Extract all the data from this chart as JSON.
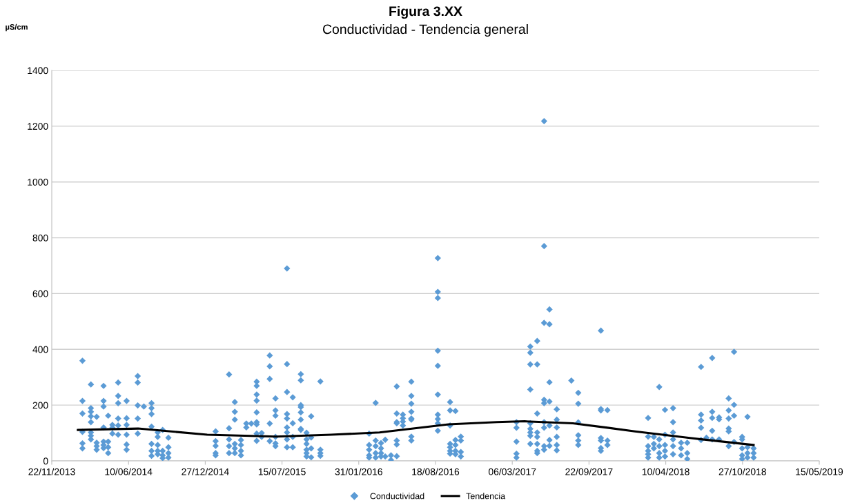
{
  "chart_data": {
    "type": "scatter",
    "title": "Figura 3.XX",
    "subtitle": "Conductividad - Tendencia general",
    "ylabel": "µS/cm",
    "xlim": [
      "2013-11-22",
      "2019-05-15"
    ],
    "xticks": [
      {
        "value": "2013-11-22",
        "label": "22/11/2013"
      },
      {
        "value": "2014-06-10",
        "label": "10/06/2014"
      },
      {
        "value": "2014-12-27",
        "label": "27/12/2014"
      },
      {
        "value": "2015-07-15",
        "label": "15/07/2015"
      },
      {
        "value": "2016-01-31",
        "label": "31/01/2016"
      },
      {
        "value": "2016-08-18",
        "label": "18/08/2016"
      },
      {
        "value": "2017-03-06",
        "label": "06/03/2017"
      },
      {
        "value": "2017-09-22",
        "label": "22/09/2017"
      },
      {
        "value": "2018-04-10",
        "label": "10/04/2018"
      },
      {
        "value": "2018-10-27",
        "label": "27/10/2018"
      },
      {
        "value": "2019-05-15",
        "label": "15/05/2019"
      }
    ],
    "ylim": [
      0,
      1400
    ],
    "yticks": [
      0,
      200,
      400,
      600,
      800,
      1000,
      1200,
      1400
    ],
    "grid": "y",
    "legend": "bottom",
    "series": [
      {
        "name": "Conductividad",
        "marker": "diamond",
        "color": "#5b9bd5",
        "x": [
          "2014-02-10",
          "2014-02-10",
          "2014-02-10",
          "2014-02-10",
          "2014-02-10",
          "2014-02-10",
          "2014-03-04",
          "2014-03-04",
          "2014-03-04",
          "2014-03-04",
          "2014-03-04",
          "2014-03-04",
          "2014-03-04",
          "2014-03-04",
          "2014-03-19",
          "2014-03-19",
          "2014-03-19",
          "2014-03-19",
          "2014-04-06",
          "2014-04-06",
          "2014-04-06",
          "2014-04-06",
          "2014-04-06",
          "2014-04-06",
          "2014-04-06",
          "2014-04-18",
          "2014-04-18",
          "2014-04-18",
          "2014-04-18",
          "2014-04-29",
          "2014-04-29",
          "2014-04-29",
          "2014-05-14",
          "2014-05-14",
          "2014-05-14",
          "2014-05-14",
          "2014-05-14",
          "2014-05-14",
          "2014-06-05",
          "2014-06-05",
          "2014-06-05",
          "2014-06-05",
          "2014-06-05",
          "2014-06-05",
          "2014-07-04",
          "2014-07-04",
          "2014-07-04",
          "2014-07-04",
          "2014-07-04",
          "2014-07-20",
          "2014-08-09",
          "2014-08-09",
          "2014-08-09",
          "2014-08-09",
          "2014-08-09",
          "2014-08-09",
          "2014-08-09",
          "2014-08-25",
          "2014-08-25",
          "2014-08-25",
          "2014-08-25",
          "2014-08-25",
          "2014-09-07",
          "2014-09-07",
          "2014-09-07",
          "2014-09-07",
          "2014-09-22",
          "2014-09-22",
          "2014-09-22",
          "2014-09-22",
          "2015-01-23",
          "2015-01-23",
          "2015-01-23",
          "2015-01-23",
          "2015-01-23",
          "2015-02-27",
          "2015-02-27",
          "2015-02-27",
          "2015-02-27",
          "2015-02-27",
          "2015-03-14",
          "2015-03-14",
          "2015-03-14",
          "2015-03-14",
          "2015-03-14",
          "2015-03-14",
          "2015-03-30",
          "2015-03-30",
          "2015-03-30",
          "2015-03-30",
          "2015-04-13",
          "2015-04-13",
          "2015-04-26",
          "2015-05-10",
          "2015-05-10",
          "2015-05-10",
          "2015-05-10",
          "2015-05-10",
          "2015-05-10",
          "2015-05-10",
          "2015-05-10",
          "2015-05-10",
          "2015-05-23",
          "2015-05-23",
          "2015-06-13",
          "2015-06-13",
          "2015-06-13",
          "2015-06-13",
          "2015-06-13",
          "2015-06-28",
          "2015-06-28",
          "2015-06-28",
          "2015-06-28",
          "2015-06-28",
          "2015-06-28",
          "2015-07-28",
          "2015-07-28",
          "2015-07-28",
          "2015-07-28",
          "2015-07-28",
          "2015-07-28",
          "2015-07-28",
          "2015-07-28",
          "2015-07-28",
          "2015-08-12",
          "2015-08-12",
          "2015-08-12",
          "2015-08-12",
          "2015-09-02",
          "2015-09-02",
          "2015-09-02",
          "2015-09-02",
          "2015-09-02",
          "2015-09-02",
          "2015-09-02",
          "2015-09-02",
          "2015-09-17",
          "2015-09-17",
          "2015-09-17",
          "2015-09-17",
          "2015-09-17",
          "2015-09-17",
          "2015-09-29",
          "2015-09-29",
          "2015-09-29",
          "2015-09-29",
          "2015-10-23",
          "2015-10-23",
          "2015-10-23",
          "2015-10-23",
          "2016-02-27",
          "2016-02-27",
          "2016-02-27",
          "2016-02-27",
          "2016-02-27",
          "2016-03-15",
          "2016-03-15",
          "2016-03-15",
          "2016-03-15",
          "2016-03-15",
          "2016-03-29",
          "2016-03-29",
          "2016-03-29",
          "2016-03-29",
          "2016-04-09",
          "2016-04-09",
          "2016-04-24",
          "2016-04-24",
          "2016-05-09",
          "2016-05-09",
          "2016-05-09",
          "2016-05-09",
          "2016-05-09",
          "2016-05-09",
          "2016-05-09",
          "2016-05-25",
          "2016-05-25",
          "2016-05-25",
          "2016-05-25",
          "2016-06-16",
          "2016-06-16",
          "2016-06-16",
          "2016-06-16",
          "2016-06-16",
          "2016-06-16",
          "2016-06-16",
          "2016-06-16",
          "2016-08-24",
          "2016-08-24",
          "2016-08-24",
          "2016-08-24",
          "2016-08-24",
          "2016-08-24",
          "2016-08-24",
          "2016-08-24",
          "2016-08-24",
          "2016-08-24",
          "2016-09-25",
          "2016-09-25",
          "2016-09-25",
          "2016-09-25",
          "2016-09-25",
          "2016-09-25",
          "2016-09-25",
          "2016-10-09",
          "2016-10-09",
          "2016-10-09",
          "2016-10-09",
          "2016-10-09",
          "2016-10-23",
          "2016-10-23",
          "2016-10-23",
          "2016-10-23",
          "2017-03-17",
          "2017-03-17",
          "2017-03-17",
          "2017-03-17",
          "2017-03-17",
          "2017-04-22",
          "2017-04-22",
          "2017-04-22",
          "2017-04-22",
          "2017-04-22",
          "2017-04-22",
          "2017-04-22",
          "2017-04-22",
          "2017-04-22",
          "2017-05-10",
          "2017-05-10",
          "2017-05-10",
          "2017-05-10",
          "2017-05-10",
          "2017-05-10",
          "2017-05-10",
          "2017-05-10",
          "2017-05-28",
          "2017-05-28",
          "2017-05-28",
          "2017-05-28",
          "2017-05-28",
          "2017-05-28",
          "2017-05-28",
          "2017-05-28",
          "2017-05-28",
          "2017-06-11",
          "2017-06-11",
          "2017-06-11",
          "2017-06-11",
          "2017-06-11",
          "2017-06-11",
          "2017-06-11",
          "2017-06-30",
          "2017-06-30",
          "2017-06-30",
          "2017-06-30",
          "2017-06-30",
          "2017-06-30",
          "2017-08-07",
          "2017-08-25",
          "2017-08-25",
          "2017-08-25",
          "2017-08-25",
          "2017-08-25",
          "2017-08-25",
          "2017-10-23",
          "2017-10-23",
          "2017-10-23",
          "2017-10-23",
          "2017-10-23",
          "2017-10-23",
          "2017-10-23",
          "2017-11-09",
          "2017-11-09",
          "2017-11-09",
          "2018-02-23",
          "2018-02-23",
          "2018-02-23",
          "2018-02-23",
          "2018-02-23",
          "2018-02-23",
          "2018-03-10",
          "2018-03-10",
          "2018-03-10",
          "2018-03-24",
          "2018-03-24",
          "2018-03-24",
          "2018-03-24",
          "2018-03-24",
          "2018-04-08",
          "2018-04-08",
          "2018-04-08",
          "2018-04-08",
          "2018-04-08",
          "2018-04-29",
          "2018-04-29",
          "2018-04-29",
          "2018-04-29",
          "2018-04-29",
          "2018-04-29",
          "2018-05-20",
          "2018-05-20",
          "2018-05-20",
          "2018-06-05",
          "2018-06-05",
          "2018-06-05",
          "2018-07-11",
          "2018-07-11",
          "2018-07-11",
          "2018-07-11",
          "2018-07-11",
          "2018-07-25",
          "2018-08-09",
          "2018-08-09",
          "2018-08-09",
          "2018-08-09",
          "2018-08-09",
          "2018-08-27",
          "2018-08-27",
          "2018-08-27",
          "2018-09-21",
          "2018-09-21",
          "2018-09-21",
          "2018-09-21",
          "2018-09-21",
          "2018-09-21",
          "2018-10-05",
          "2018-10-05",
          "2018-10-05",
          "2018-10-05",
          "2018-10-26",
          "2018-10-26",
          "2018-10-26",
          "2018-10-26",
          "2018-10-26",
          "2018-11-09",
          "2018-11-09",
          "2018-11-09",
          "2018-11-09",
          "2018-11-25",
          "2018-11-25",
          "2018-11-25"
        ],
        "values": [
          359,
          215,
          170,
          104,
          63,
          45,
          274,
          189,
          176,
          160,
          139,
          102,
          90,
          77,
          158,
          65,
          53,
          40,
          269,
          215,
          195,
          120,
          69,
          57,
          46,
          162,
          69,
          49,
          28,
          129,
          119,
          98,
          281,
          233,
          207,
          152,
          127,
          94,
          215,
          153,
          129,
          94,
          59,
          40,
          304,
          281,
          199,
          152,
          98,
          195,
          207,
          189,
          168,
          123,
          61,
          36,
          18,
          102,
          86,
          57,
          36,
          24,
          111,
          36,
          20,
          10,
          83,
          49,
          28,
          12,
          106,
          71,
          54,
          28,
          20,
          310,
          117,
          77,
          53,
          28,
          211,
          176,
          148,
          61,
          45,
          28,
          75,
          57,
          36,
          20,
          134,
          120,
          134,
          284,
          269,
          238,
          216,
          174,
          139,
          131,
          98,
          72,
          100,
          86,
          378,
          339,
          294,
          134,
          71,
          224,
          181,
          162,
          86,
          63,
          53,
          690,
          347,
          247,
          168,
          152,
          120,
          102,
          77,
          49,
          228,
          135,
          86,
          49,
          311,
          289,
          200,
          193,
          174,
          148,
          115,
          111,
          101,
          77,
          61,
          40,
          28,
          16,
          160,
          84,
          45,
          13,
          285,
          40,
          28,
          18,
          98,
          57,
          40,
          20,
          12,
          208,
          73,
          53,
          28,
          12,
          64,
          45,
          28,
          16,
          76,
          16,
          20,
          3,
          267,
          170,
          139,
          135,
          73,
          59,
          17,
          166,
          153,
          141,
          127,
          284,
          233,
          205,
          176,
          152,
          148,
          87,
          73,
          727,
          606,
          584,
          395,
          341,
          238,
          166,
          150,
          135,
          108,
          211,
          181,
          127,
          61,
          49,
          36,
          26,
          179,
          75,
          57,
          36,
          24,
          87,
          73,
          32,
          16,
          139,
          119,
          69,
          26,
          12,
          410,
          388,
          346,
          256,
          135,
          115,
          102,
          90,
          61,
          430,
          346,
          170,
          102,
          86,
          61,
          36,
          28,
          1218,
          770,
          495,
          219,
          207,
          139,
          119,
          53,
          40,
          543,
          490,
          282,
          213,
          127,
          75,
          54,
          185,
          148,
          120,
          86,
          57,
          38,
          288,
          244,
          205,
          138,
          92,
          73,
          57,
          467,
          186,
          181,
          82,
          73,
          46,
          36,
          182,
          73,
          57,
          154,
          87,
          53,
          36,
          24,
          12,
          86,
          61,
          45,
          265,
          77,
          53,
          28,
          12,
          183,
          94,
          57,
          36,
          16,
          189,
          139,
          102,
          77,
          53,
          24,
          65,
          45,
          20,
          65,
          28,
          7,
          337,
          166,
          145,
          119,
          75,
          83,
          369,
          176,
          154,
          108,
          77,
          156,
          149,
          77,
          224,
          181,
          152,
          116,
          106,
          53,
          391,
          201,
          162,
          68,
          86,
          77,
          45,
          20,
          7,
          158,
          49,
          28,
          12,
          45,
          28,
          12
        ]
      },
      {
        "name": "Tendencia",
        "type": "line",
        "marker": "none",
        "line_style": "solid",
        "color": "#000000",
        "x": [
          "2014-01-29",
          "2014-07-05",
          "2015-01-01",
          "2015-06-30",
          "2015-11-20",
          "2016-03-25",
          "2016-09-21",
          "2017-01-25",
          "2017-04-07",
          "2017-08-11",
          "2017-11-09",
          "2018-01-20",
          "2018-06-12",
          "2018-11-25"
        ],
        "values": [
          111,
          116,
          94,
          87,
          94,
          102,
          131,
          139,
          142,
          135,
          119,
          106,
          82,
          57
        ]
      }
    ]
  }
}
